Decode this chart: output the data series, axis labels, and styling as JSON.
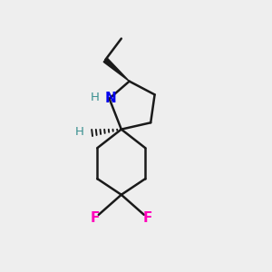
{
  "bg_color": "#eeeeee",
  "bond_color": "#1a1a1a",
  "N_color": "#0000ee",
  "H_color": "#3a9090",
  "F_color": "#ff00bb",
  "bond_width": 1.8,
  "fig_w": 3.0,
  "fig_h": 3.0,
  "dpi": 100,
  "xlim": [
    0,
    10
  ],
  "ylim": [
    0,
    10
  ]
}
